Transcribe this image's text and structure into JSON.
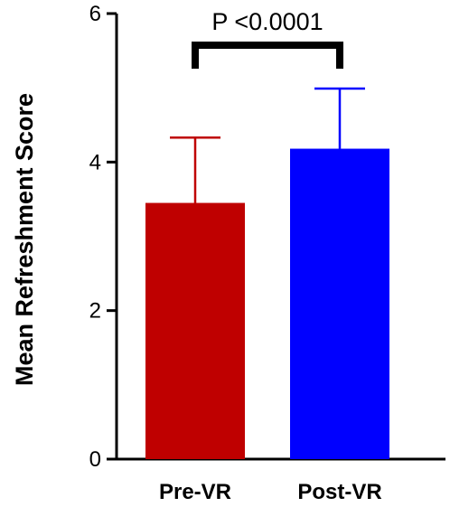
{
  "chart_data": {
    "type": "bar",
    "title": "",
    "xlabel": "",
    "ylabel": "Mean Refreshment Score",
    "ylim": [
      0,
      6
    ],
    "yticks": [
      "0",
      "2",
      "4",
      "6"
    ],
    "categories": [
      "Pre-VR",
      "Post-VR"
    ],
    "values": [
      3.45,
      4.18
    ],
    "error_upper": [
      4.33,
      4.99
    ],
    "colors": [
      "#bf0000",
      "#0000ff"
    ],
    "grid": false,
    "annotation": {
      "text": "P <0.0001",
      "type": "significance-bracket",
      "between": [
        "Pre-VR",
        "Post-VR"
      ]
    }
  }
}
